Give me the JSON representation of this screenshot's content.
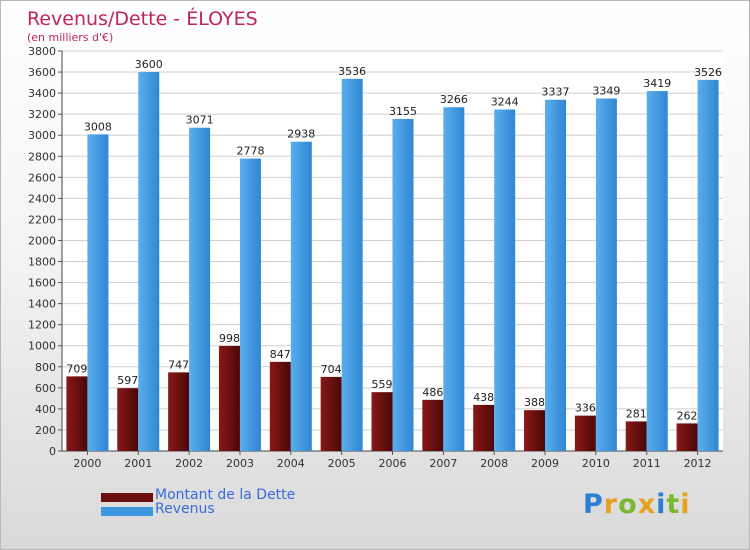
{
  "title": "Revenus/Dette - ÉLOYES",
  "subtitle": "(en milliers d'€)",
  "logo": {
    "text": "Proxiti",
    "letter_colors": [
      "#2a7fd4",
      "#e8a020",
      "#7cb82f",
      "#e8a020",
      "#2a7fd4",
      "#7cb82f",
      "#e8a020"
    ]
  },
  "colors": {
    "dette": "#6b0f0f",
    "revenus": "#3d96e0",
    "title": "#c0245a",
    "legend_text": "#3a6bd8"
  },
  "legend": [
    {
      "label": "Montant de la Dette",
      "color": "#6b0f0f"
    },
    {
      "label": "Revenus",
      "color": "#3d96e0"
    }
  ],
  "chart_data": {
    "type": "bar",
    "title": "Revenus/Dette - ÉLOYES",
    "subtitle": "(en milliers d'€)",
    "categories": [
      "2000",
      "2001",
      "2002",
      "2003",
      "2004",
      "2005",
      "2006",
      "2007",
      "2008",
      "2009",
      "2010",
      "2011",
      "2012"
    ],
    "series": [
      {
        "name": "Montant de la Dette",
        "values": [
          709,
          597,
          747,
          998,
          847,
          704,
          559,
          486,
          438,
          388,
          336,
          281,
          262
        ]
      },
      {
        "name": "Revenus",
        "values": [
          3008,
          3600,
          3071,
          2778,
          2938,
          3536,
          3155,
          3266,
          3244,
          3337,
          3349,
          3419,
          3526
        ]
      }
    ],
    "ylim": [
      0,
      3800
    ],
    "yticks": [
      0,
      200,
      400,
      600,
      800,
      1000,
      1200,
      1400,
      1600,
      1800,
      2000,
      2200,
      2400,
      2600,
      2800,
      3000,
      3200,
      3400,
      3600,
      3800
    ],
    "grid": true,
    "legend_position": "bottom-left"
  }
}
